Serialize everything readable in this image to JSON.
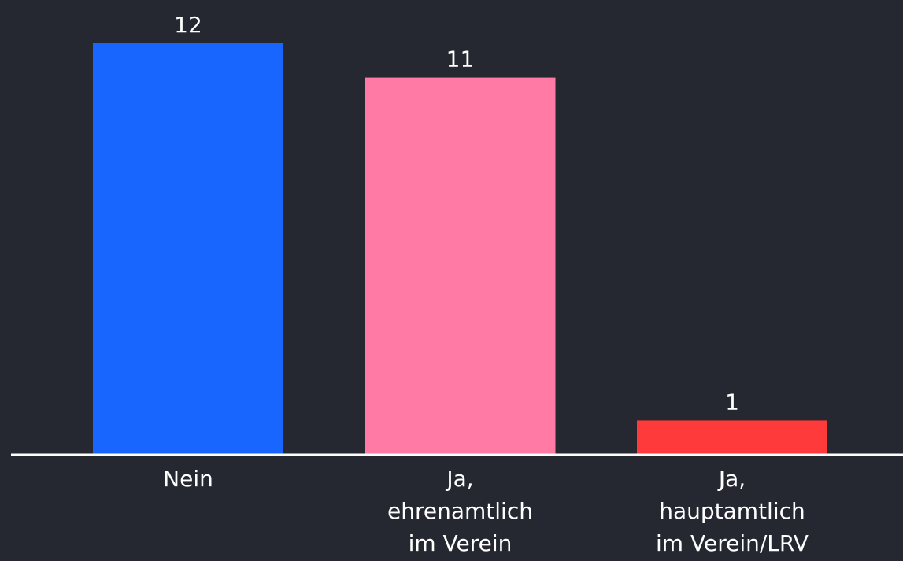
{
  "chart_data": {
    "type": "bar",
    "categories": [
      "Nein",
      "Ja,\nehrenamtlich\nim Verein",
      "Ja,\nhauptamtlich\nim Verein/LRV"
    ],
    "values": [
      12,
      11,
      1
    ],
    "colors": [
      "#1966ff",
      "#ff7ba5",
      "#ff3a3a"
    ],
    "ylim": [
      0,
      12
    ]
  }
}
